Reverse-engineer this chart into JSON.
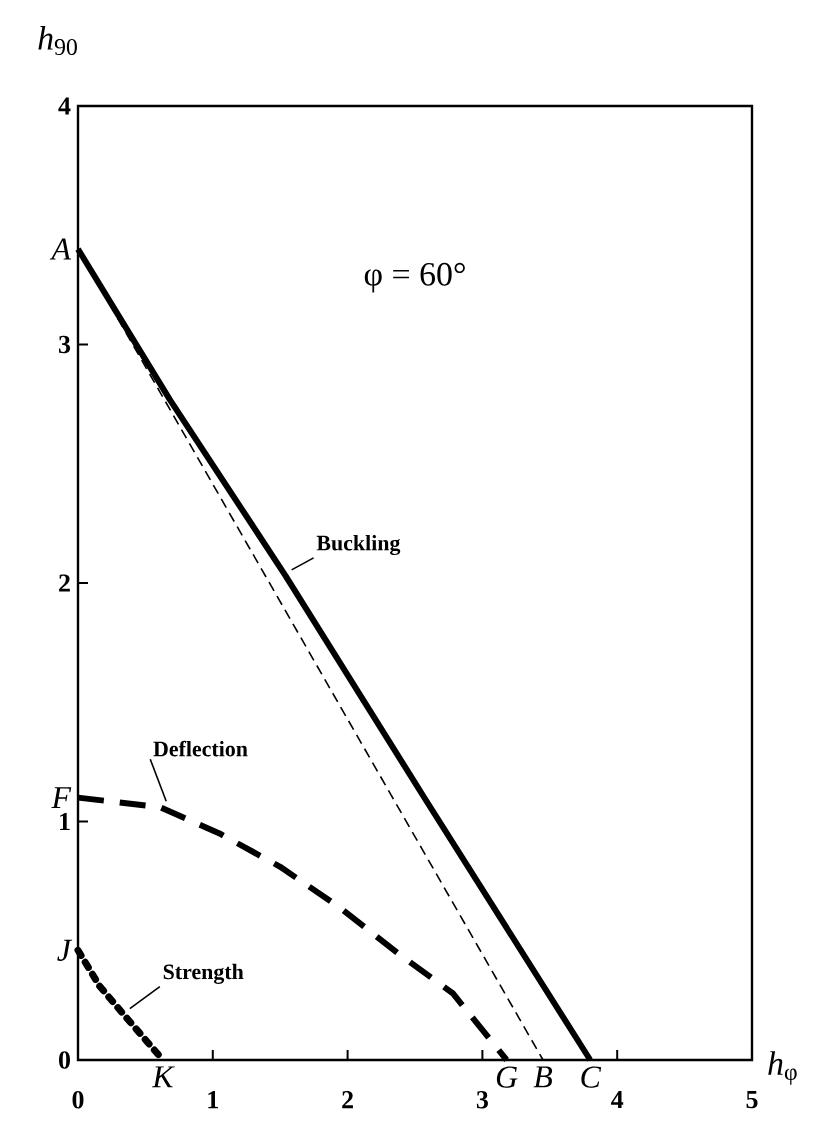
{
  "chart_data": {
    "type": "line",
    "xlabel": "*h*$_{φ}$",
    "ylabel": "*h*$_{90}$",
    "xlim": [
      0,
      5
    ],
    "ylim": [
      0,
      4
    ],
    "xticks": [
      0,
      1,
      2,
      3,
      4,
      5
    ],
    "yticks": [
      0,
      1,
      2,
      3,
      4
    ],
    "grid": false,
    "legend": false,
    "series": [
      {
        "name": "Buckling",
        "color": "#000000",
        "line_style": "solid",
        "x": [
          0,
          0.68,
          1.54,
          2.58,
          3.8
        ],
        "values": [
          3.4,
          2.77,
          2.03,
          1.09,
          0
        ]
      },
      {
        "color": "#000000",
        "line_style": "dashed",
        "x": [
          0,
          3.45
        ],
        "values": [
          3.4,
          0
        ]
      },
      {
        "name": "Deflection",
        "color": "#000000",
        "line_style": "dashed",
        "x": [
          0,
          0.61,
          1.05,
          1.5,
          1.94,
          2.39,
          2.78,
          3.18
        ],
        "values": [
          1.1,
          1.06,
          0.95,
          0.81,
          0.64,
          0.44,
          0.28,
          0
        ]
      },
      {
        "name": "Strength",
        "color": "#000000",
        "line_style": "dotted",
        "x": [
          0,
          0.16,
          0.34,
          0.63
        ],
        "values": [
          0.46,
          0.31,
          0.19,
          0
        ]
      }
    ],
    "annotations": [
      "φ = 60°",
      {
        "text": "A",
        "x": 0,
        "y": 3.4
      },
      {
        "text": "F",
        "x": 0,
        "y": 1.1
      },
      {
        "text": "J",
        "x": 0,
        "y": 0.46
      },
      {
        "text": "K",
        "x": 0.63,
        "y": 0
      },
      {
        "text": "G",
        "x": 3.18,
        "y": 0
      },
      {
        "text": "B",
        "x": 3.45,
        "y": 0
      },
      {
        "text": "C",
        "x": 3.8,
        "y": 0
      }
    ]
  }
}
